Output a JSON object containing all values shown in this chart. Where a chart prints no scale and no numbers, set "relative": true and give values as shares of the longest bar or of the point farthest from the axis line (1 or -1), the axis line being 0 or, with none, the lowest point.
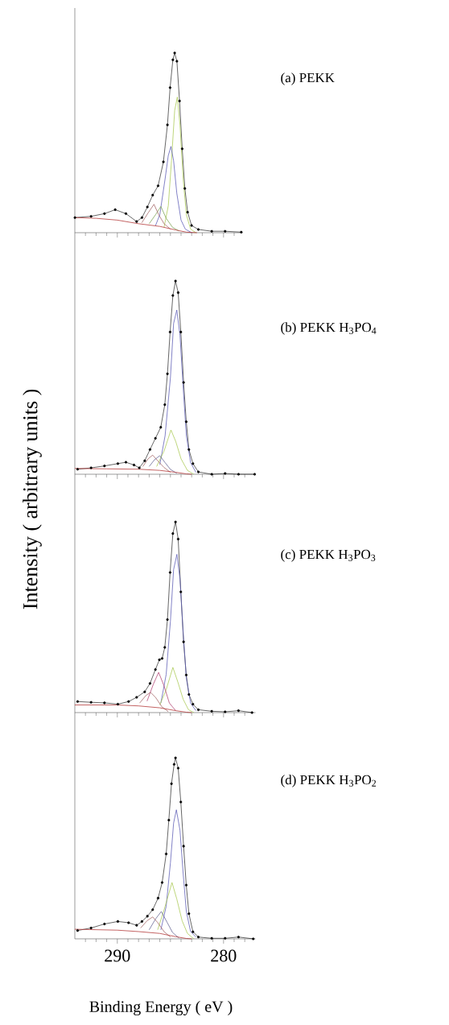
{
  "chart_data": [
    {
      "type": "line",
      "relative": true,
      "annotations": [
        "(a) PEKK"
      ],
      "xlim": [
        294,
        278.2
      ],
      "tick_labels": false,
      "xticks": [
        {
          "value": 293,
          "label": null
        },
        {
          "value": 292,
          "label": null
        },
        {
          "value": 291,
          "label": null
        },
        290,
        {
          "value": 289,
          "label": null
        },
        {
          "value": 288,
          "label": null
        },
        {
          "value": 287,
          "label": null
        },
        {
          "value": 286,
          "label": null
        },
        {
          "value": 285,
          "label": null
        },
        {
          "value": 284,
          "label": null
        },
        {
          "value": 283,
          "label": null
        },
        {
          "value": 282,
          "label": null
        },
        {
          "value": 281,
          "label": null
        },
        280,
        {
          "value": 279,
          "label": null
        }
      ],
      "series": [
        {
          "color": "#000000",
          "marker": "circle",
          "x": [
            293.99,
            292.47,
            291.21,
            290.2,
            289.19,
            288.18,
            287.68,
            287.17,
            286.67,
            286.16,
            285.66,
            285.28,
            285.03,
            284.77,
            284.6,
            284.39,
            284.14,
            283.89,
            283.64,
            283.38,
            283.01,
            282.37,
            281.11,
            279.85,
            278.33
          ],
          "values": [
            0.084,
            0.091,
            0.106,
            0.128,
            0.106,
            0.062,
            0.084,
            0.143,
            0.209,
            0.261,
            0.394,
            0.6,
            0.807,
            0.962,
            1,
            0.954,
            0.733,
            0.467,
            0.246,
            0.114,
            0.04,
            0.018,
            0.008,
            0.008,
            0.003
          ]
        },
        {
          "color": "#a8c850",
          "x": [
            285.6,
            285.2,
            284.9,
            284.6,
            284.35,
            284.1,
            283.8,
            283.5,
            283.1,
            282.6
          ],
          "values": [
            0.03,
            0.15,
            0.4,
            0.68,
            0.755,
            0.6,
            0.3,
            0.1,
            0.02,
            0
          ]
        },
        {
          "color": "#5a5ab4",
          "x": [
            286.4,
            286.0,
            285.5,
            285.2,
            284.95,
            284.7,
            284.4,
            284.0,
            283.6,
            283.0
          ],
          "values": [
            0.04,
            0.1,
            0.3,
            0.43,
            0.48,
            0.4,
            0.22,
            0.07,
            0.02,
            0
          ]
        },
        {
          "color": "#78a050",
          "x": [
            287.0,
            286.4,
            285.9,
            285.4,
            284.8,
            284.2
          ],
          "values": [
            0.05,
            0.1,
            0.146,
            0.08,
            0.03,
            0.01
          ]
        },
        {
          "color": "#a06060",
          "x": [
            287.7,
            287.1,
            286.55,
            286.1,
            285.6,
            285.0
          ],
          "values": [
            0.055,
            0.11,
            0.158,
            0.1,
            0.05,
            0.02
          ]
        },
        {
          "color": "#b03030",
          "x": [
            294,
            292,
            290,
            288,
            286,
            284.5,
            283.5,
            282.5
          ],
          "values": [
            0.084,
            0.08,
            0.07,
            0.05,
            0.035,
            0.015,
            0.003,
            0
          ]
        }
      ]
    },
    {
      "type": "line",
      "relative": true,
      "annotations": [
        "(b) PEKK H$_{3}$PO$_{4}$"
      ],
      "ylabel": "Intensity ( arbitrary units )",
      "xlim": [
        294,
        277
      ],
      "tick_labels": false,
      "xticks": [
        {
          "value": 293,
          "label": null
        },
        {
          "value": 292,
          "label": null
        },
        {
          "value": 291,
          "label": null
        },
        290,
        {
          "value": 289,
          "label": null
        },
        {
          "value": 288,
          "label": null
        },
        {
          "value": 287,
          "label": null
        },
        {
          "value": 286,
          "label": null
        },
        {
          "value": 285,
          "label": null
        },
        {
          "value": 284,
          "label": null
        },
        {
          "value": 283,
          "label": null
        },
        {
          "value": 282,
          "label": null
        },
        {
          "value": 281,
          "label": null
        },
        280,
        {
          "value": 279,
          "label": null
        },
        {
          "value": 278,
          "label": null
        }
      ],
      "series": [
        {
          "color": "#000000",
          "marker": "circle",
          "x": [
            293.74,
            292.47,
            291.21,
            289.95,
            289.19,
            288.43,
            287.93,
            287.42,
            286.92,
            286.41,
            285.91,
            285.53,
            285.28,
            285.03,
            284.77,
            284.52,
            284.27,
            284.02,
            283.76,
            283.51,
            283.26,
            282.88,
            282.37,
            281.11,
            279.85,
            278.59,
            277.07
          ],
          "values": [
            0.026,
            0.033,
            0.043,
            0.055,
            0.062,
            0.048,
            0.033,
            0.07,
            0.128,
            0.186,
            0.243,
            0.36,
            0.52,
            0.736,
            0.925,
            1,
            0.94,
            0.736,
            0.475,
            0.272,
            0.128,
            0.055,
            0.012,
            0,
            0.004,
            0,
            0
          ]
        },
        {
          "color": "#5a5ab4",
          "x": [
            286.0,
            285.5,
            285.0,
            284.7,
            284.4,
            284.1,
            283.8,
            283.5,
            283.1,
            282.6
          ],
          "values": [
            0.05,
            0.2,
            0.5,
            0.78,
            0.85,
            0.72,
            0.45,
            0.2,
            0.06,
            0.01
          ]
        },
        {
          "color": "#a8c850",
          "x": [
            286.3,
            285.6,
            284.95,
            284.5,
            284.0,
            283.4,
            282.8
          ],
          "values": [
            0.04,
            0.12,
            0.229,
            0.17,
            0.08,
            0.02,
            0
          ]
        },
        {
          "color": "#a06060",
          "x": [
            287.6,
            287.1,
            286.67,
            286.2,
            285.6,
            285.0
          ],
          "values": [
            0.04,
            0.08,
            0.099,
            0.07,
            0.035,
            0.01
          ]
        },
        {
          "color": "#606090",
          "x": [
            287.0,
            286.5,
            286.0,
            285.5,
            285.0,
            284.4
          ],
          "values": [
            0.04,
            0.075,
            0.096,
            0.06,
            0.025,
            0.005
          ]
        },
        {
          "color": "#b03030",
          "x": [
            294,
            291,
            288,
            286,
            284.5,
            283.5,
            283
          ],
          "values": [
            0.03,
            0.028,
            0.026,
            0.02,
            0.01,
            0.002,
            0
          ]
        }
      ]
    },
    {
      "type": "line",
      "relative": true,
      "annotations": [
        "(c) PEKK H$_{3}$PO$_{3}$"
      ],
      "xlim": [
        294,
        277
      ],
      "tick_labels": false,
      "xticks": [
        {
          "value": 293,
          "label": null
        },
        {
          "value": 292,
          "label": null
        },
        {
          "value": 291,
          "label": null
        },
        290,
        {
          "value": 289,
          "label": null
        },
        {
          "value": 288,
          "label": null
        },
        {
          "value": 287,
          "label": null
        },
        {
          "value": 286,
          "label": null
        },
        {
          "value": 285,
          "label": null
        },
        {
          "value": 284,
          "label": null
        },
        {
          "value": 283,
          "label": null
        },
        {
          "value": 282,
          "label": null
        },
        {
          "value": 281,
          "label": null
        },
        280,
        {
          "value": 279,
          "label": null
        },
        {
          "value": 278,
          "label": null
        }
      ],
      "series": [
        {
          "color": "#000000",
          "marker": "circle",
          "x": [
            293.74,
            292.47,
            291.21,
            289.95,
            288.94,
            288.18,
            287.42,
            286.92,
            286.41,
            286.04,
            285.78,
            285.53,
            285.28,
            285.03,
            284.77,
            284.52,
            284.27,
            284.02,
            283.76,
            283.51,
            283.26,
            282.88,
            282.37,
            281.11,
            279.85,
            278.59,
            277.32
          ],
          "values": [
            0.058,
            0.054,
            0.051,
            0.044,
            0.058,
            0.08,
            0.109,
            0.153,
            0.226,
            0.277,
            0.284,
            0.342,
            0.488,
            0.735,
            0.939,
            1,
            0.91,
            0.633,
            0.371,
            0.197,
            0.095,
            0.044,
            0.015,
            0.007,
            0.004,
            0.01,
            0
          ]
        },
        {
          "color": "#5a5ab4",
          "x": [
            285.9,
            285.4,
            285.0,
            284.7,
            284.39,
            284.1,
            283.8,
            283.5,
            283.1,
            282.6
          ],
          "values": [
            0.05,
            0.2,
            0.48,
            0.75,
            0.83,
            0.7,
            0.42,
            0.18,
            0.05,
            0.01
          ]
        },
        {
          "color": "#a8c850",
          "x": [
            286.0,
            285.4,
            284.77,
            284.3,
            283.8,
            283.3,
            282.8
          ],
          "values": [
            0.04,
            0.12,
            0.237,
            0.16,
            0.07,
            0.015,
            0
          ]
        },
        {
          "color": "#b04070",
          "x": [
            287.2,
            286.6,
            286.11,
            285.6,
            285.1,
            284.5
          ],
          "values": [
            0.06,
            0.15,
            0.211,
            0.14,
            0.05,
            0.01
          ]
        },
        {
          "color": "#a06060",
          "x": [
            287.9,
            287.3,
            286.87,
            286.4,
            285.8,
            285.2
          ],
          "values": [
            0.05,
            0.09,
            0.106,
            0.08,
            0.03,
            0.005
          ]
        },
        {
          "color": "#b03030",
          "x": [
            294,
            290,
            288,
            286,
            284.5,
            283.5,
            283
          ],
          "values": [
            0.04,
            0.04,
            0.035,
            0.025,
            0.01,
            0.002,
            0
          ]
        }
      ]
    },
    {
      "type": "line",
      "relative": true,
      "annotations": [
        "(d) PEKK H$_{3}$PO$_{2}$"
      ],
      "xlabel": "Binding Energy ( eV )",
      "xlim": [
        294,
        277
      ],
      "tick_labels": "x",
      "xticks": [
        {
          "value": 293,
          "label": null
        },
        {
          "value": 292,
          "label": null
        },
        {
          "value": 291,
          "label": null
        },
        290,
        {
          "value": 289,
          "label": null
        },
        {
          "value": 288,
          "label": null
        },
        {
          "value": 287,
          "label": null
        },
        {
          "value": 286,
          "label": null
        },
        {
          "value": 285,
          "label": null
        },
        {
          "value": 284,
          "label": null
        },
        {
          "value": 283,
          "label": null
        },
        {
          "value": 282,
          "label": null
        },
        {
          "value": 281,
          "label": null
        },
        280,
        {
          "value": 279,
          "label": null
        },
        {
          "value": 278,
          "label": null
        }
      ],
      "series": [
        {
          "color": "#000000",
          "marker": "circle",
          "x": [
            293.74,
            292.47,
            291.21,
            289.95,
            288.94,
            288.18,
            287.68,
            287.17,
            286.67,
            286.16,
            285.78,
            285.4,
            285.15,
            284.9,
            284.65,
            284.52,
            284.27,
            284.02,
            283.76,
            283.51,
            283.26,
            282.88,
            282.37,
            281.11,
            279.85,
            278.59,
            277.2
          ],
          "values": [
            0.046,
            0.06,
            0.082,
            0.096,
            0.089,
            0.075,
            0.096,
            0.125,
            0.161,
            0.225,
            0.311,
            0.469,
            0.656,
            0.857,
            0.964,
            1,
            0.943,
            0.756,
            0.512,
            0.297,
            0.139,
            0.039,
            0.01,
            0.003,
            0.003,
            0.01,
            0
          ]
        },
        {
          "color": "#5a5ab4",
          "x": [
            285.9,
            285.4,
            285.0,
            284.7,
            284.44,
            284.1,
            283.8,
            283.5,
            283.1,
            282.6
          ],
          "values": [
            0.05,
            0.18,
            0.42,
            0.64,
            0.713,
            0.6,
            0.36,
            0.15,
            0.04,
            0.01
          ]
        },
        {
          "color": "#a8c850",
          "x": [
            286.2,
            285.6,
            284.85,
            284.4,
            283.9,
            283.4,
            282.8
          ],
          "values": [
            0.05,
            0.16,
            0.311,
            0.22,
            0.1,
            0.03,
            0
          ]
        },
        {
          "color": "#606090",
          "x": [
            287.0,
            286.4,
            285.86,
            285.3,
            284.8,
            284.2
          ],
          "values": [
            0.05,
            0.11,
            0.151,
            0.09,
            0.035,
            0.005
          ]
        },
        {
          "color": "#a06060",
          "x": [
            287.8,
            287.2,
            286.67,
            286.2,
            285.6,
            285.0
          ],
          "values": [
            0.06,
            0.1,
            0.121,
            0.09,
            0.04,
            0.01
          ]
        },
        {
          "color": "#b03030",
          "x": [
            294,
            290,
            288,
            286,
            284.5,
            283.5,
            283
          ],
          "values": [
            0.053,
            0.048,
            0.04,
            0.03,
            0.012,
            0.002,
            0
          ]
        }
      ]
    }
  ]
}
